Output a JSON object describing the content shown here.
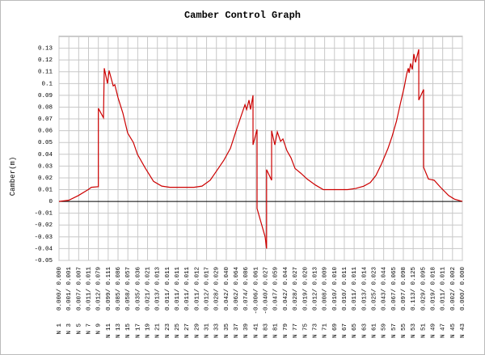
{
  "chart_data": {
    "type": "line",
    "title": "Camber Control Graph",
    "y_label": "Camber(m)",
    "categories": [
      "N 1",
      "N 3",
      "N 5",
      "N 7",
      "N 9",
      "N 11",
      "N 13",
      "N 15",
      "N 17",
      "N 19",
      "N 21",
      "N 23",
      "N 25",
      "N 27",
      "N 29",
      "N 31",
      "N 33",
      "N 35",
      "N 37",
      "N 39",
      "N 41",
      "N 83",
      "N 81",
      "N 79",
      "N 77",
      "N 75",
      "N 73",
      "N 71",
      "N 69",
      "N 67",
      "N 65",
      "N 63",
      "N 61",
      "N 59",
      "N 57",
      "N 55",
      "N 53",
      "N 51",
      "N 49",
      "N 47",
      "N 45",
      "N 43"
    ],
    "category_values": [
      "0.000/ 0.000",
      "0.001/ 0.001",
      "0.007/ 0.007",
      "0.011/ 0.011",
      "0.012/ 0.079",
      "0.099/ 0.111",
      "0.085/ 0.086",
      "0.058/ 0.057",
      "0.035/ 0.036",
      "0.021/ 0.021",
      "0.013/ 0.013",
      "0.011/ 0.011",
      "0.011/ 0.011",
      "0.011/ 0.011",
      "0.011/ 0.012",
      "0.012/ 0.017",
      "0.028/ 0.029",
      "0.042/ 0.040",
      "0.062/ 0.064",
      "0.074/ 0.086",
      "-0.006/ 0.061",
      "-0.040/ 0.027",
      "0.047/ 0.059",
      "0.042/ 0.044",
      "0.028/ 0.027",
      "0.019/ 0.020",
      "0.012/ 0.013",
      "0.008/ 0.009",
      "0.010/ 0.010",
      "0.010/ 0.011",
      "0.011/ 0.011",
      "0.013/ 0.014",
      "0.025/ 0.023",
      "0.043/ 0.044",
      "0.067/ 0.065",
      "0.097/ 0.098",
      "0.113/ 0.125",
      "0.029/ 0.095",
      "0.019/ 0.018",
      "0.011/ 0.011",
      "0.002/ 0.002",
      "0.000/ 0.000"
    ],
    "series": [
      {
        "color": "#cc0000",
        "x": [
          0,
          0.99,
          1.97,
          2.96,
          3.29,
          4,
          4,
          4.52,
          4.6,
          4.93,
          5.09,
          5.51,
          5.67,
          6.0,
          6.49,
          6.98,
          7.56,
          7.97,
          8.79,
          9.61,
          10.44,
          11.26,
          13.72,
          14.54,
          15.37,
          16.19,
          16.76,
          17.42,
          18.0,
          18.49,
          18.9,
          19.07,
          19.31,
          19.47,
          19.72,
          19.72,
          20.13,
          20.13,
          20.95,
          21.1,
          21.1,
          21.61,
          21.61,
          21.94,
          22.19,
          22.52,
          22.76,
          23.17,
          23.58,
          23.99,
          24.57,
          25.22,
          26.05,
          26.87,
          27.69,
          29.33,
          30.16,
          30.98,
          31.64,
          32.21,
          32.79,
          33.44,
          33.85,
          34.3,
          34.7,
          35.09,
          35.34,
          35.5,
          35.59,
          35.74,
          35.91,
          36.07,
          36.24,
          36.57,
          36.57,
          37.06,
          37.06,
          37.55,
          38.13,
          38.78,
          39.6,
          40.18,
          41
        ],
        "values": [
          0,
          0.001,
          0.005,
          0.01,
          0.012,
          0.0125,
          0.079,
          0.071,
          0.113,
          0.1,
          0.111,
          0.098,
          0.099,
          0.088,
          0.075,
          0.058,
          0.05,
          0.04,
          0.028,
          0.017,
          0.013,
          0.012,
          0.012,
          0.013,
          0.018,
          0.028,
          0.035,
          0.045,
          0.06,
          0.072,
          0.082,
          0.078,
          0.086,
          0.078,
          0.09,
          0.048,
          0.061,
          -0.006,
          -0.03,
          -0.04,
          0.027,
          0.018,
          0.06,
          0.048,
          0.059,
          0.051,
          0.053,
          0.043,
          0.037,
          0.028,
          0.024,
          0.019,
          0.014,
          0.01,
          0.01,
          0.01,
          0.011,
          0.013,
          0.016,
          0.022,
          0.032,
          0.045,
          0.055,
          0.068,
          0.083,
          0.097,
          0.108,
          0.113,
          0.109,
          0.117,
          0.112,
          0.125,
          0.118,
          0.129,
          0.086,
          0.095,
          0.029,
          0.019,
          0.018,
          0.012,
          0.005,
          0.002,
          0.0
        ]
      }
    ],
    "xlim": [
      0,
      41
    ],
    "ylim": [
      -0.05,
      0.14
    ],
    "yticks": [
      -0.05,
      -0.04,
      -0.03,
      -0.02,
      -0.01,
      0,
      0.01,
      0.02,
      0.03,
      0.04,
      0.05,
      0.06,
      0.07,
      0.08,
      0.09,
      0.1,
      0.11,
      0.12,
      0.13
    ],
    "grid": true
  }
}
